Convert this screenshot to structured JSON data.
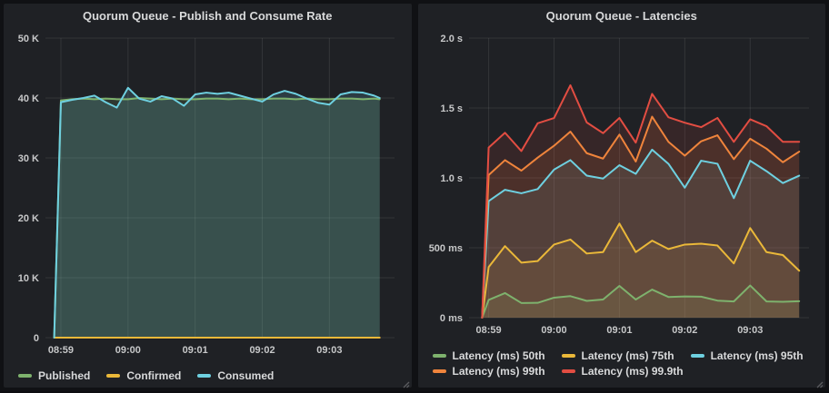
{
  "dashboard": {
    "background": "#101114",
    "panel_background": "#1f2125"
  },
  "chart_data": [
    {
      "type": "line",
      "title": "Quorum Queue - Publish and Consume Rate",
      "xlabel": "",
      "ylabel": "",
      "x_minutes_from_0859": [
        -0.1,
        0,
        0.167,
        0.333,
        0.5,
        0.667,
        0.833,
        1,
        1.167,
        1.333,
        1.5,
        1.667,
        1.833,
        2,
        2.167,
        2.333,
        2.5,
        2.667,
        2.833,
        3,
        3.167,
        3.333,
        3.5,
        3.667,
        3.833,
        4,
        4.167,
        4.333,
        4.5,
        4.667,
        4.75
      ],
      "series": [
        {
          "name": "Published",
          "color": "#7EB26D",
          "values": [
            0,
            39600,
            39800,
            39900,
            39800,
            39900,
            39800,
            39800,
            40000,
            39900,
            39800,
            39900,
            39800,
            39800,
            39900,
            39900,
            39800,
            39900,
            39800,
            39800,
            39900,
            39900,
            39800,
            39900,
            39800,
            39800,
            39900,
            39900,
            39800,
            39900,
            39800
          ]
        },
        {
          "name": "Confirmed",
          "color": "#EAB839",
          "values": [
            0,
            0,
            0,
            0,
            0,
            0,
            0,
            0,
            0,
            0,
            0,
            0,
            0,
            0,
            0,
            0,
            0,
            0,
            0,
            0,
            0,
            0,
            0,
            0,
            0,
            0,
            0,
            0,
            0,
            0,
            0
          ]
        },
        {
          "name": "Consumed",
          "color": "#6ED0E0",
          "values": [
            0,
            39300,
            39700,
            40000,
            40400,
            39300,
            38400,
            41700,
            39900,
            39400,
            40300,
            39900,
            38700,
            40600,
            40900,
            40700,
            40900,
            40400,
            39900,
            39400,
            40600,
            41200,
            40700,
            39900,
            39200,
            38900,
            40600,
            41000,
            40900,
            40400,
            40000
          ]
        }
      ],
      "xlim": [
        -0.23,
        4.97
      ],
      "ylim": [
        0,
        50000
      ],
      "yticks": [
        {
          "v": 0,
          "label": "0"
        },
        {
          "v": 10000,
          "label": "10 K"
        },
        {
          "v": 20000,
          "label": "20 K"
        },
        {
          "v": 30000,
          "label": "30 K"
        },
        {
          "v": 40000,
          "label": "40 K"
        },
        {
          "v": 50000,
          "label": "50 K"
        }
      ],
      "xticks": [
        {
          "v": 0,
          "label": "08:59"
        },
        {
          "v": 1,
          "label": "09:00"
        },
        {
          "v": 2,
          "label": "09:01"
        },
        {
          "v": 3,
          "label": "09:02"
        },
        {
          "v": 4,
          "label": "09:03"
        }
      ],
      "grid": true,
      "legend_position": "bottom",
      "fill_opacity": 0.16
    },
    {
      "type": "line",
      "title": "Quorum Queue - Latencies",
      "xlabel": "",
      "ylabel": "",
      "x_minutes_from_0859": [
        -0.1,
        0,
        0.25,
        0.5,
        0.75,
        1,
        1.25,
        1.5,
        1.75,
        2,
        2.25,
        2.5,
        2.75,
        3,
        3.25,
        3.5,
        3.75,
        4,
        4.25,
        4.5,
        4.75
      ],
      "series": [
        {
          "name": "Latency (ms) 50th",
          "color": "#7EB26D",
          "values": [
            0,
            127,
            176,
            105,
            106,
            143,
            154,
            120,
            130,
            227,
            130,
            201,
            148,
            152,
            150,
            122,
            116,
            230,
            116,
            114,
            118
          ]
        },
        {
          "name": "Latency (ms) 75th",
          "color": "#EAB839",
          "values": [
            0,
            362,
            512,
            394,
            405,
            523,
            559,
            459,
            469,
            673,
            469,
            551,
            491,
            523,
            529,
            516,
            388,
            641,
            469,
            448,
            336
          ]
        },
        {
          "name": "Latency (ms) 95th",
          "color": "#6ED0E0",
          "values": [
            0,
            834,
            915,
            890,
            920,
            1059,
            1127,
            1016,
            995,
            1091,
            1029,
            1202,
            1101,
            930,
            1123,
            1101,
            855,
            1123,
            1048,
            963,
            1016
          ]
        },
        {
          "name": "Latency (ms) 99th",
          "color": "#EF843C",
          "values": [
            0,
            1020,
            1127,
            1052,
            1145,
            1230,
            1331,
            1177,
            1138,
            1310,
            1117,
            1438,
            1258,
            1159,
            1262,
            1305,
            1134,
            1280,
            1209,
            1112,
            1188
          ]
        },
        {
          "name": "Latency (ms) 99.9th",
          "color": "#E24D42",
          "values": [
            0,
            1217,
            1323,
            1192,
            1391,
            1428,
            1663,
            1397,
            1320,
            1429,
            1252,
            1601,
            1434,
            1395,
            1363,
            1429,
            1258,
            1419,
            1370,
            1258,
            1258
          ]
        }
      ],
      "xlim": [
        -0.3,
        4.9
      ],
      "ylim": [
        0,
        2000
      ],
      "yticks": [
        {
          "v": 0,
          "label": "0 ms"
        },
        {
          "v": 500,
          "label": "500 ms"
        },
        {
          "v": 1000,
          "label": "1.0 s"
        },
        {
          "v": 1500,
          "label": "1.5 s"
        },
        {
          "v": 2000,
          "label": "2.0 s"
        }
      ],
      "xticks": [
        {
          "v": 0,
          "label": "08:59"
        },
        {
          "v": 1,
          "label": "09:00"
        },
        {
          "v": 2,
          "label": "09:01"
        },
        {
          "v": 3,
          "label": "09:02"
        },
        {
          "v": 4,
          "label": "09:03"
        }
      ],
      "grid": true,
      "legend_position": "bottom",
      "fill_opacity": 0.12
    }
  ]
}
